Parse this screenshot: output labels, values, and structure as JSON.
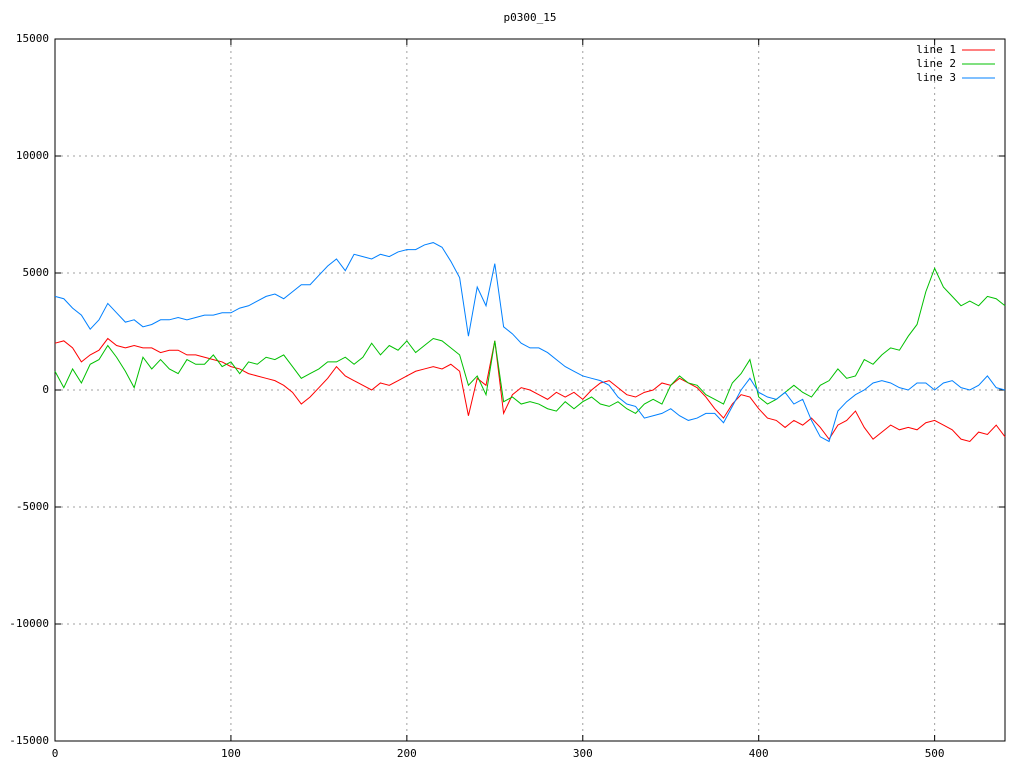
{
  "chart_data": {
    "type": "line",
    "title": "p0300_15",
    "x": [
      0,
      5,
      10,
      15,
      20,
      25,
      30,
      35,
      40,
      45,
      50,
      55,
      60,
      65,
      70,
      75,
      80,
      85,
      90,
      95,
      100,
      105,
      110,
      115,
      120,
      125,
      130,
      135,
      140,
      145,
      150,
      155,
      160,
      165,
      170,
      175,
      180,
      185,
      190,
      195,
      200,
      205,
      210,
      215,
      220,
      225,
      230,
      235,
      240,
      245,
      250,
      255,
      260,
      265,
      270,
      275,
      280,
      285,
      290,
      295,
      300,
      305,
      310,
      315,
      320,
      325,
      330,
      335,
      340,
      345,
      350,
      355,
      360,
      365,
      370,
      375,
      380,
      385,
      390,
      395,
      400,
      405,
      410,
      415,
      420,
      425,
      430,
      435,
      440,
      445,
      450,
      455,
      460,
      465,
      470,
      475,
      480,
      485,
      490,
      495,
      500,
      505,
      510,
      515,
      520,
      525,
      530,
      535,
      540
    ],
    "series": [
      {
        "name": "line 1",
        "color": "#ff0000",
        "values": [
          2000,
          2100,
          1800,
          1200,
          1500,
          1700,
          2200,
          1900,
          1800,
          1900,
          1800,
          1800,
          1600,
          1700,
          1700,
          1500,
          1500,
          1400,
          1300,
          1200,
          1000,
          900,
          700,
          600,
          500,
          400,
          200,
          -100,
          -600,
          -300,
          100,
          500,
          1000,
          600,
          400,
          200,
          0,
          300,
          200,
          400,
          600,
          800,
          900,
          1000,
          900,
          1100,
          800,
          -1100,
          500,
          200,
          2100,
          -1000,
          -200,
          100,
          0,
          -200,
          -400,
          -100,
          -300,
          -100,
          -400,
          0,
          300,
          400,
          100,
          -200,
          -300,
          -100,
          0,
          300,
          200,
          500,
          300,
          100,
          -300,
          -800,
          -1200,
          -600,
          -200,
          -300,
          -800,
          -1200,
          -1300,
          -1600,
          -1300,
          -1500,
          -1200,
          -1600,
          -2100,
          -1500,
          -1300,
          -900,
          -1600,
          -2100,
          -1800,
          -1500,
          -1700,
          -1600,
          -1700,
          -1400,
          -1300,
          -1500,
          -1700,
          -2100,
          -2200,
          -1800,
          -1900,
          -1500,
          -2000
        ]
      },
      {
        "name": "line 2",
        "color": "#00c000",
        "values": [
          800,
          100,
          900,
          300,
          1100,
          1300,
          1900,
          1400,
          800,
          100,
          1400,
          900,
          1300,
          900,
          700,
          1300,
          1100,
          1100,
          1500,
          1000,
          1200,
          700,
          1200,
          1100,
          1400,
          1300,
          1500,
          1000,
          500,
          700,
          900,
          1200,
          1200,
          1400,
          1100,
          1400,
          2000,
          1500,
          1900,
          1700,
          2100,
          1600,
          1900,
          2200,
          2100,
          1800,
          1500,
          200,
          600,
          -200,
          2100,
          -500,
          -300,
          -600,
          -500,
          -600,
          -800,
          -900,
          -500,
          -800,
          -500,
          -300,
          -600,
          -700,
          -500,
          -800,
          -1000,
          -600,
          -400,
          -600,
          200,
          600,
          300,
          200,
          -200,
          -400,
          -600,
          300,
          700,
          1300,
          -300,
          -600,
          -400,
          -100,
          200,
          -100,
          -300,
          200,
          400,
          900,
          500,
          600,
          1300,
          1100,
          1500,
          1800,
          1700,
          2300,
          2800,
          4200,
          5200,
          4400,
          4000,
          3600,
          3800,
          3600,
          4000,
          3900,
          3600
        ]
      },
      {
        "name": "line 3",
        "color": "#0080ff",
        "values": [
          4000,
          3900,
          3500,
          3200,
          2600,
          3000,
          3700,
          3300,
          2900,
          3000,
          2700,
          2800,
          3000,
          3000,
          3100,
          3000,
          3100,
          3200,
          3200,
          3300,
          3300,
          3500,
          3600,
          3800,
          4000,
          4100,
          3900,
          4200,
          4500,
          4500,
          4900,
          5300,
          5600,
          5100,
          5800,
          5700,
          5600,
          5800,
          5700,
          5900,
          6000,
          6000,
          6200,
          6300,
          6100,
          5500,
          4800,
          2300,
          4400,
          3600,
          5400,
          2700,
          2400,
          2000,
          1800,
          1800,
          1600,
          1300,
          1000,
          800,
          600,
          500,
          400,
          200,
          -300,
          -600,
          -700,
          -1200,
          -1100,
          -1000,
          -800,
          -1100,
          -1300,
          -1200,
          -1000,
          -1000,
          -1400,
          -700,
          0,
          500,
          -100,
          -300,
          -400,
          -100,
          -600,
          -400,
          -1300,
          -2000,
          -2200,
          -900,
          -500,
          -200,
          0,
          300,
          400,
          300,
          100,
          0,
          300,
          300,
          0,
          300,
          400,
          100,
          0,
          200,
          600,
          100,
          0
        ]
      }
    ],
    "xlim": [
      0,
      540
    ],
    "xticks": [
      0,
      100,
      200,
      300,
      400,
      500
    ],
    "ylim": [
      -15000,
      15000
    ],
    "yticks": [
      -15000,
      -10000,
      -5000,
      0,
      5000,
      10000,
      15000
    ],
    "grid": true,
    "legend": "top-right"
  }
}
